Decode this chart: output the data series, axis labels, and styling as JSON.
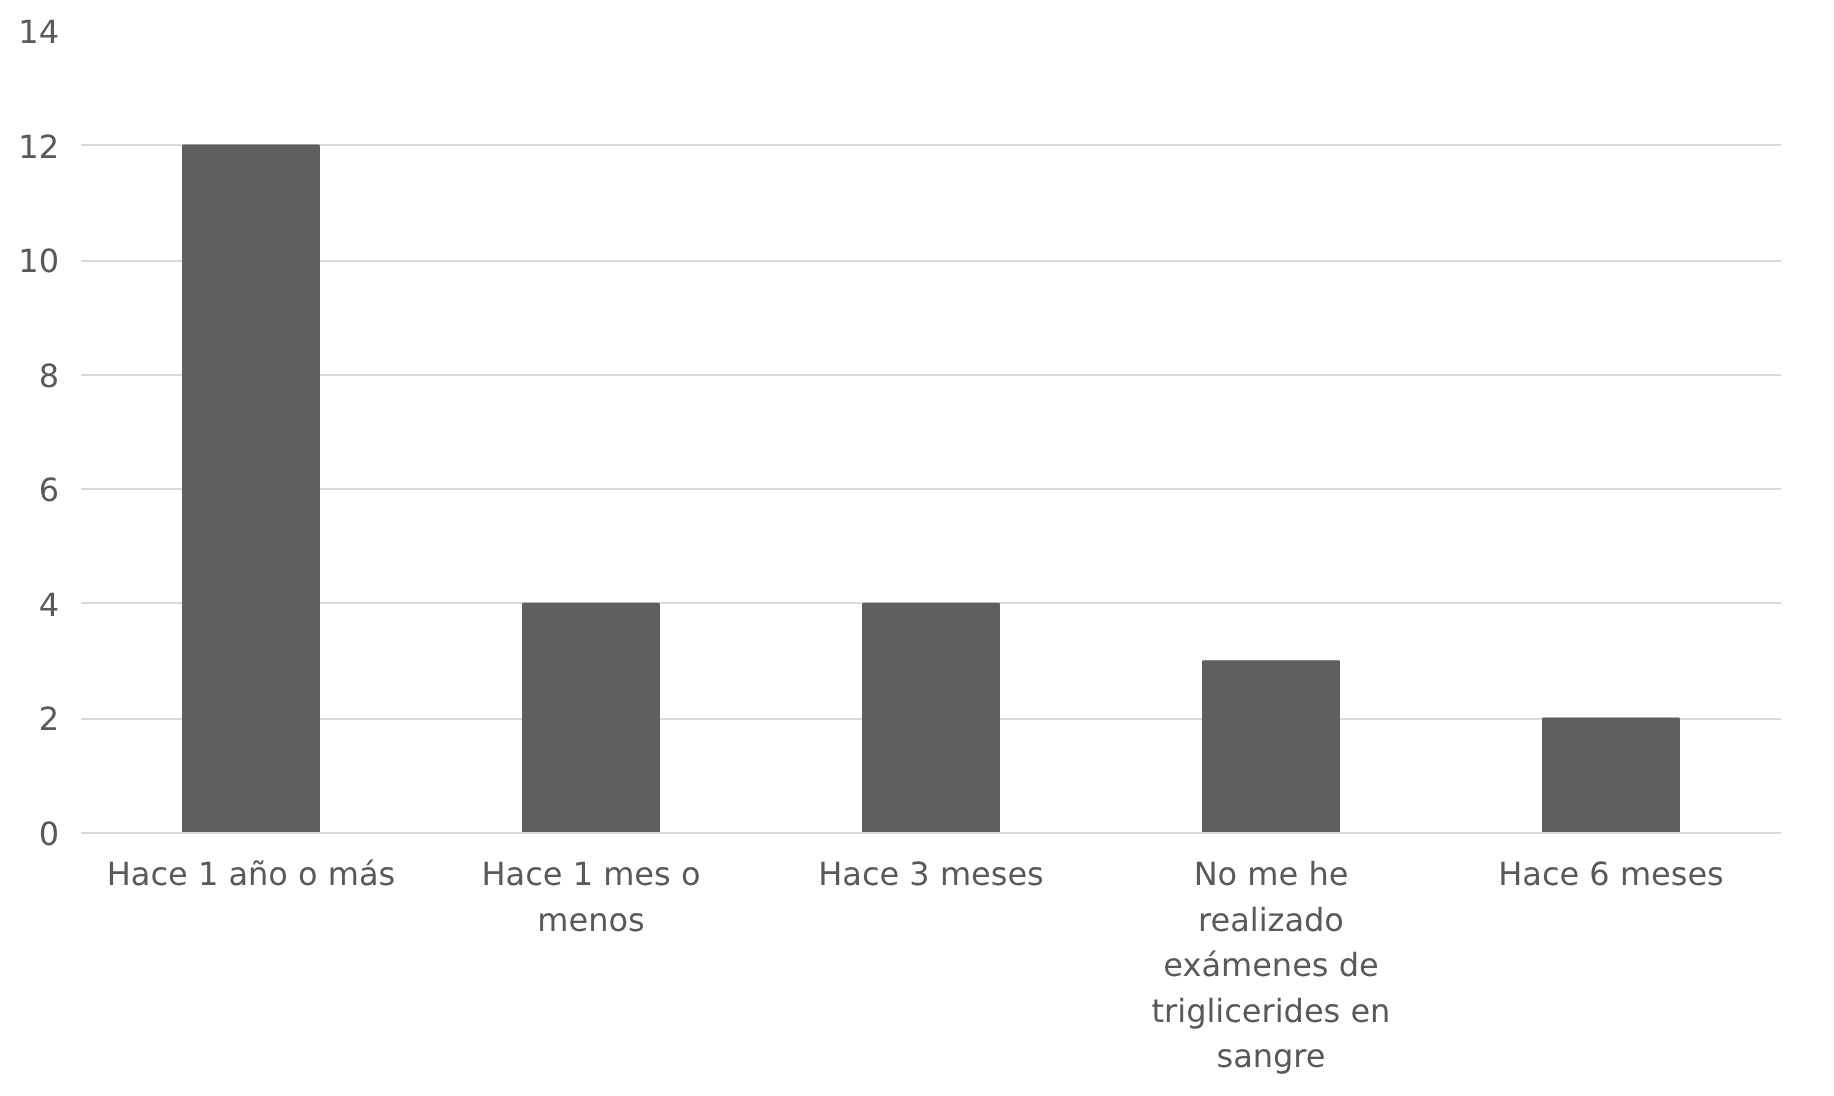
{
  "chart_data": {
    "type": "bar",
    "categories": [
      "Hace 1 año o más",
      "Hace 1 mes o menos",
      "Hace 3 meses",
      "No me he realizado exámenes de triglicerides en sangre",
      "Hace 6 meses"
    ],
    "values": [
      12,
      4,
      4,
      3,
      2
    ],
    "color": "#5f5f5f",
    "ylim": [
      0,
      14
    ],
    "yticks": [
      0,
      2,
      4,
      6,
      8,
      10,
      12,
      14
    ],
    "grid": "y"
  }
}
